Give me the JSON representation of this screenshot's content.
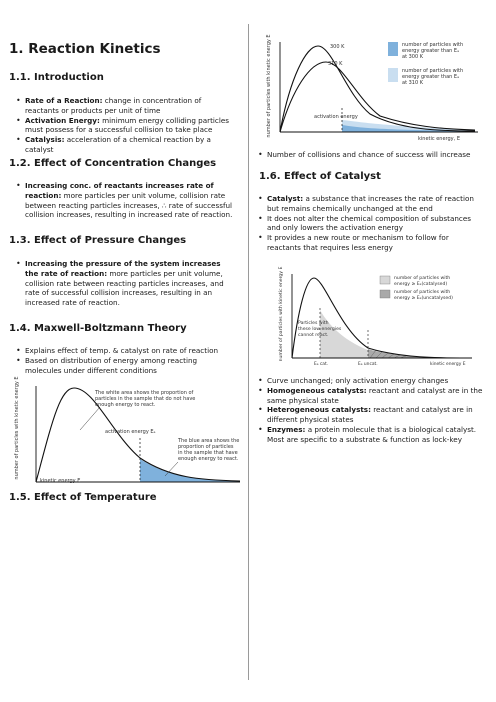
{
  "left": {
    "title": "1. Reaction Kinetics",
    "intro": {
      "heading": "1.1. Introduction",
      "items": [
        {
          "term": "Rate of a Reaction:",
          "text": " change in concentration of reactants or products per unit of time"
        },
        {
          "term": "Activation Energy:",
          "text": " minimum energy colliding particles must possess for a successful collision to take place"
        },
        {
          "term": "Catalysis:",
          "text": " acceleration of a chemical reaction by a catalyst"
        }
      ]
    },
    "concentration": {
      "heading": "1.2. Effect of Concentration Changes",
      "items": [
        {
          "term": "Increasing conc. of reactants increases rate of reaction:",
          "text": " more particles per unit volume, collision rate between reacting particles increases, ∴ rate of successful collision increases, resulting in increased rate of reaction."
        }
      ]
    },
    "pressure": {
      "heading": "1.3. Effect of Pressure Changes",
      "items": [
        {
          "term": "Increasing the pressure of the system increases the rate of reaction:",
          "text": " more particles per unit volume, collision rate between reacting particles increases, and rate of successful collision increases, resulting in an increased rate of reaction."
        }
      ]
    },
    "maxwell": {
      "heading": "1.4. Maxwell-Boltzmann Theory",
      "items": [
        {
          "text": "Explains effect of temp. & catalyst on rate of reaction"
        },
        {
          "text": "Based on distribution of energy among reacting molecules under different conditions"
        }
      ],
      "figure": {
        "ylabel": "number of particles with kinetic energy E",
        "xlabel": "kinetic energy E",
        "activation_label": "activation energy Eₐ",
        "note_top": [
          "The white area shows the proportion of",
          "particles in the sample that do not have",
          "enough energy to react."
        ],
        "note_bottom": [
          "The blue area shows the",
          "proportion of particles",
          "in the sample that have",
          "enough energy to react."
        ],
        "fill_color": "#7fb1dc"
      }
    },
    "temperature": {
      "heading": "1.5. Effect of Temperature"
    }
  },
  "right": {
    "temp_figure": {
      "curve1_label": "300 K",
      "curve2_label": "310 K",
      "ylabel": "number of particles with kinetic energy E",
      "xlabel": "kinetic energy, E",
      "activation_label": "activation energy",
      "legend1": [
        "number of particles with",
        "energy greater than Eₐ",
        "at 300 K"
      ],
      "legend2": [
        "number of particles with",
        "energy greater than Eₐ",
        "at 310 K"
      ],
      "color_300": "#7fb1dc",
      "color_310": "#c9def0"
    },
    "temp_items": [
      {
        "text": "Number of collisions and chance of success will increase"
      }
    ],
    "catalyst": {
      "heading": "1.6. Effect of Catalyst",
      "items": [
        {
          "term": "Catalyst:",
          "text": " a substance that increases the rate of reaction but remains chemically unchanged at the end"
        },
        {
          "text": "It does not alter the chemical composition of substances and only lowers the activation energy"
        },
        {
          "text": "It provides a new route or mechanism to follow for reactants that requires less energy"
        }
      ],
      "figure": {
        "ylabel": "number of particles with kinetic energy E",
        "xlabel": "kinetic energy E",
        "legend1": [
          "number of particles with",
          "energy ≥ Eₐ(catalysed)"
        ],
        "legend2": [
          "number of particles with",
          "energy ≥ Eₐ(uncatalysed)"
        ],
        "note": [
          "Particles with",
          "these low energies",
          "cannot react."
        ],
        "ea_catalysed": "Eₐ cat.",
        "ea_uncatalysed": "Eₐ uncat.",
        "fill_color": "#a9a9a9"
      },
      "items2": [
        {
          "text": "Curve unchanged; only activation energy changes"
        },
        {
          "term": "Homogeneous catalysts:",
          "text": " reactant and catalyst are in the same physical state"
        },
        {
          "term": "Heterogeneous catalysts:",
          "text": " reactant and catalyst are in different physical states"
        },
        {
          "term": "Enzymes:",
          "text": " a protein molecule that is a biological catalyst. Most are specific to a substrate & function as lock-key"
        }
      ]
    }
  }
}
